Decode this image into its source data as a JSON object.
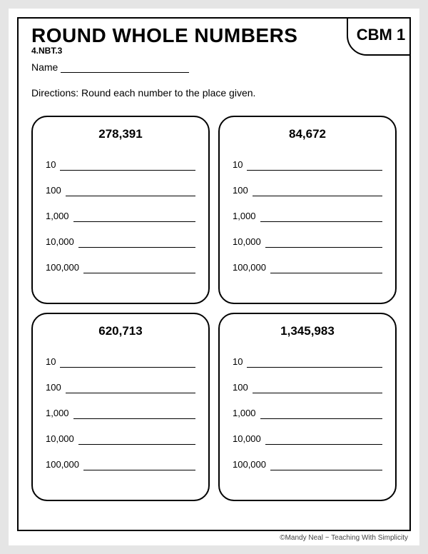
{
  "header": {
    "title": "ROUND WHOLE NUMBERS",
    "standard": "4.NBT.3",
    "badge": "CBM 1",
    "name_label": "Name"
  },
  "directions": "Directions:  Round each number to the place given.",
  "place_labels": [
    "10",
    "100",
    "1,000",
    "10,000",
    "100,000"
  ],
  "cards": [
    {
      "number": "278,391"
    },
    {
      "number": "84,672"
    },
    {
      "number": "620,713"
    },
    {
      "number": "1,345,983"
    }
  ],
  "footer": "©Mandy Neal ~ Teaching With Simplicity"
}
